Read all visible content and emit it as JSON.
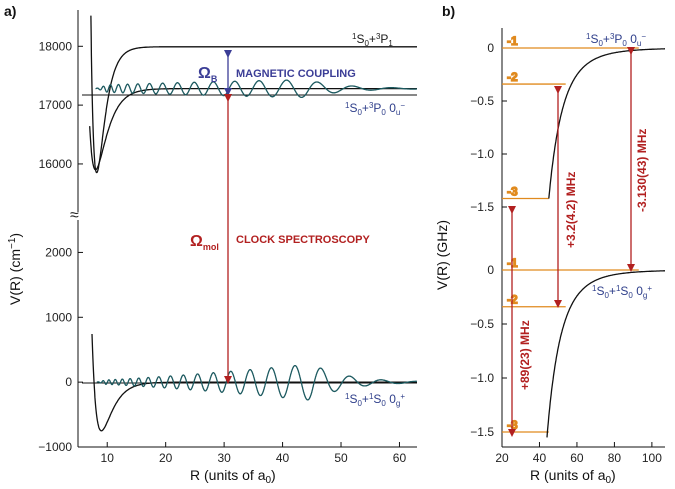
{
  "panel_a": {
    "label": "a)",
    "xlabel": "R (units of a",
    "xlabel_sub": "0",
    "xlabel_close": ")",
    "ylabel": "V(R) (cm",
    "ylabel_sup": "−1",
    "ylabel_close": ")",
    "state_top": "1S0+3P1",
    "state_mid": "1S0+3P0 0u-",
    "state_bot": "1S0+1S0 0g+",
    "omega_b": "Ω",
    "omega_b_sub": "B",
    "omega_b_label": "MAGNETIC COUPLING",
    "omega_mol": "Ω",
    "omega_mol_sub": "mol",
    "omega_mol_label": "CLOCK SPECTROSCOPY",
    "break_mark": "≈"
  },
  "panel_b": {
    "label": "b)",
    "xlabel": "R (units of a",
    "xlabel_sub": "0",
    "xlabel_close": ")",
    "ylabel": "V(R) (GHz)",
    "state_upper": "1S0+3P0 0u-",
    "state_lower": "1S0+1S0 0g+",
    "vib_upper": [
      "-1",
      "-2",
      "-3"
    ],
    "vib_lower": [
      "-1",
      "-2",
      "-3"
    ],
    "meas_1": "+89(23) MHz",
    "meas_2": "+3.2(4.2) MHz",
    "meas_3": "-3.130(43) MHz"
  },
  "colors": {
    "curve": "#111111",
    "wave": "#1d5a60",
    "orange": "#e08a1e",
    "red": "#b22020",
    "blue": "#3b3d96"
  },
  "chart_data": [
    {
      "type": "line",
      "xlim": [
        5,
        63
      ],
      "ylim_upper": [
        15200,
        18600
      ],
      "ylim_lower": [
        -1000,
        2500
      ],
      "x_ticks": [
        10,
        20,
        30,
        40,
        50,
        60
      ],
      "y_ticks_upper": [
        16000,
        17000,
        18000
      ],
      "y_ticks_lower": [
        -1000,
        0,
        1000,
        2000
      ],
      "asymptotes": {
        "1S0+3P1": 17992,
        "1S0+3P0": 17281,
        "1S0+1S0": 0
      },
      "series": [
        {
          "name": "1S0+3P1",
          "minimum_R": 8.2,
          "minimum_V": 15850
        },
        {
          "name": "1S0+3P0 0u-",
          "minimum_R": 8.0,
          "minimum_V": 15900
        },
        {
          "name": "1S0+1S0 0g+",
          "minimum_R": 9.0,
          "minimum_V": -750
        }
      ]
    },
    {
      "type": "line",
      "xlim": [
        20,
        107
      ],
      "ylim_upper": [
        -1.5,
        0.05
      ],
      "ylim_lower": [
        -1.55,
        0.05
      ],
      "x_ticks": [
        20,
        40,
        60,
        80,
        100
      ],
      "y_ticks_upper": [
        0,
        -0.5,
        -1.0,
        -1.5
      ],
      "y_ticks_lower": [
        0,
        -0.5,
        -1.0,
        -1.5
      ],
      "bound_states_upper": [
        {
          "v": -1,
          "V": 0.0,
          "R_outer": 93
        },
        {
          "v": -2,
          "V": -0.34,
          "R_outer": 54
        },
        {
          "v": -3,
          "V": -1.42,
          "R_outer": 45
        }
      ],
      "bound_states_lower": [
        {
          "v": -1,
          "V": 0.0,
          "R_outer": 93
        },
        {
          "v": -2,
          "V": -0.34,
          "R_outer": 54
        },
        {
          "v": -3,
          "V": -1.5,
          "R_outer": 45
        }
      ]
    }
  ]
}
